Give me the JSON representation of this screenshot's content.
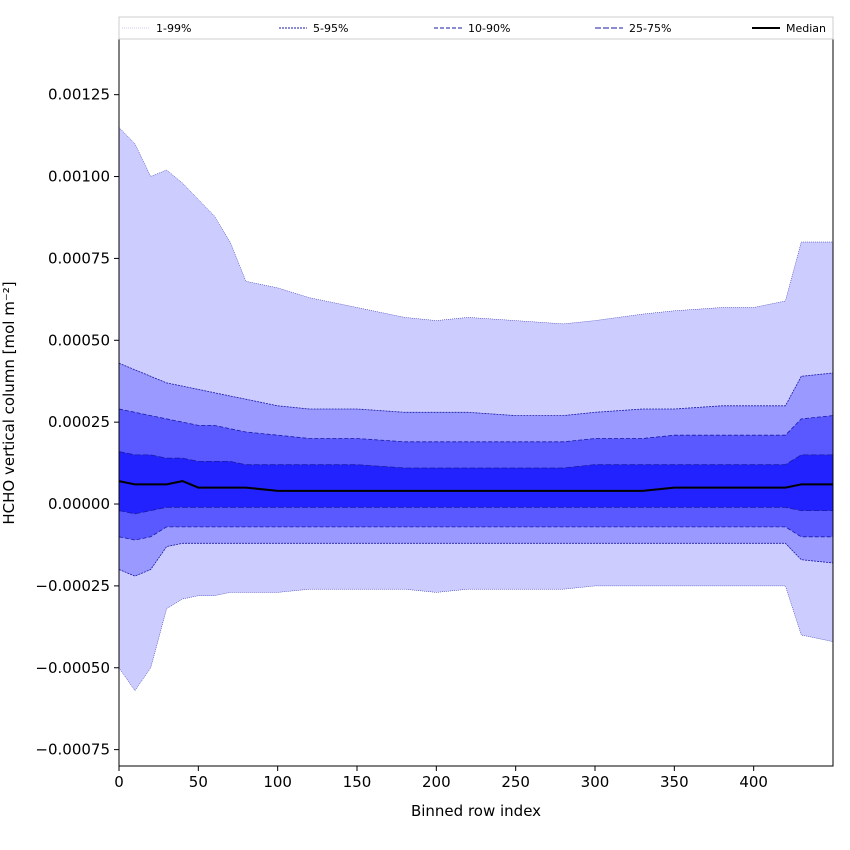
{
  "chart_data": {
    "type": "area",
    "title": "",
    "xlabel": "Binned row index",
    "ylabel": "HCHO vertical column [mol m⁻²]",
    "xlim": [
      0,
      450
    ],
    "ylim": [
      -0.0008,
      0.00142
    ],
    "xticks": [
      0,
      50,
      100,
      150,
      200,
      250,
      300,
      350,
      400
    ],
    "xtick_labels": [
      "0",
      "50",
      "100",
      "150",
      "200",
      "250",
      "300",
      "350",
      "400"
    ],
    "yticks": [
      -0.00075,
      -0.0005,
      -0.00025,
      0,
      0.00025,
      0.0005,
      0.00075,
      0.001,
      0.00125
    ],
    "ytick_labels": [
      "−0.00075",
      "−0.00050",
      "−0.00025",
      "0.00000",
      "0.00025",
      "0.00050",
      "0.00075",
      "0.00100",
      "0.00125"
    ],
    "grid": false,
    "legend_position": "top",
    "x": [
      0,
      10,
      20,
      30,
      40,
      50,
      60,
      70,
      80,
      100,
      120,
      150,
      180,
      200,
      220,
      250,
      280,
      300,
      330,
      350,
      380,
      400,
      420,
      430,
      450
    ],
    "series": [
      {
        "name": "1-99%",
        "upper": [
          0.00115,
          0.0011,
          0.001,
          0.00102,
          0.00098,
          0.00093,
          0.00088,
          0.0008,
          0.00068,
          0.00066,
          0.00063,
          0.0006,
          0.00057,
          0.00056,
          0.00057,
          0.00056,
          0.00055,
          0.00056,
          0.00058,
          0.00059,
          0.0006,
          0.0006,
          0.00062,
          0.0008,
          0.0008
        ],
        "lower": [
          -0.0005,
          -0.00057,
          -0.0005,
          -0.00032,
          -0.00029,
          -0.00028,
          -0.00028,
          -0.00027,
          -0.00027,
          -0.00027,
          -0.00026,
          -0.00026,
          -0.00026,
          -0.00027,
          -0.00026,
          -0.00026,
          -0.00026,
          -0.00025,
          -0.00025,
          -0.00025,
          -0.00025,
          -0.00025,
          -0.00025,
          -0.0004,
          -0.00042
        ],
        "color": "#ccccff"
      },
      {
        "name": "5-95%",
        "upper": [
          0.00043,
          0.00041,
          0.00039,
          0.00037,
          0.00036,
          0.00035,
          0.00034,
          0.00033,
          0.00032,
          0.0003,
          0.00029,
          0.00029,
          0.00028,
          0.00028,
          0.00028,
          0.00027,
          0.00027,
          0.00028,
          0.00029,
          0.00029,
          0.0003,
          0.0003,
          0.0003,
          0.00039,
          0.0004
        ],
        "lower": [
          -0.0002,
          -0.00022,
          -0.0002,
          -0.00013,
          -0.00012,
          -0.00012,
          -0.00012,
          -0.00012,
          -0.00012,
          -0.00012,
          -0.00012,
          -0.00012,
          -0.00012,
          -0.00012,
          -0.00012,
          -0.00012,
          -0.00012,
          -0.00012,
          -0.00012,
          -0.00012,
          -0.00012,
          -0.00012,
          -0.00012,
          -0.00017,
          -0.00018
        ],
        "color": "#9999ff"
      },
      {
        "name": "10-90%",
        "upper": [
          0.00029,
          0.00028,
          0.00027,
          0.00026,
          0.00025,
          0.00024,
          0.00024,
          0.00023,
          0.00022,
          0.00021,
          0.0002,
          0.0002,
          0.00019,
          0.00019,
          0.00019,
          0.00019,
          0.00019,
          0.0002,
          0.0002,
          0.00021,
          0.00021,
          0.00021,
          0.00021,
          0.00026,
          0.00027
        ],
        "lower": [
          -0.0001,
          -0.00011,
          -0.0001,
          -7e-05,
          -7e-05,
          -7e-05,
          -7e-05,
          -7e-05,
          -7e-05,
          -7e-05,
          -7e-05,
          -7e-05,
          -7e-05,
          -7e-05,
          -7e-05,
          -7e-05,
          -7e-05,
          -7e-05,
          -7e-05,
          -7e-05,
          -7e-05,
          -7e-05,
          -7e-05,
          -0.0001,
          -0.0001
        ],
        "color": "#5959ff"
      },
      {
        "name": "25-75%",
        "upper": [
          0.00016,
          0.00015,
          0.00015,
          0.00014,
          0.00014,
          0.00013,
          0.00013,
          0.00013,
          0.00012,
          0.00012,
          0.00012,
          0.00012,
          0.00011,
          0.00011,
          0.00011,
          0.00011,
          0.00011,
          0.00012,
          0.00012,
          0.00012,
          0.00012,
          0.00012,
          0.00012,
          0.00015,
          0.00015
        ],
        "lower": [
          -2e-05,
          -3e-05,
          -2e-05,
          -1e-05,
          -1e-05,
          -1e-05,
          -1e-05,
          -1e-05,
          -1e-05,
          -1e-05,
          -1e-05,
          -1e-05,
          -1e-05,
          -1e-05,
          -1e-05,
          -1e-05,
          -1e-05,
          -1e-05,
          -1e-05,
          -1e-05,
          -1e-05,
          -1e-05,
          -1e-05,
          -2e-05,
          -2e-05
        ],
        "color": "#2222ff"
      },
      {
        "name": "Median",
        "values": [
          7e-05,
          6e-05,
          6e-05,
          6e-05,
          7e-05,
          5e-05,
          5e-05,
          5e-05,
          5e-05,
          4e-05,
          4e-05,
          4e-05,
          4e-05,
          4e-05,
          4e-05,
          4e-05,
          4e-05,
          4e-05,
          4e-05,
          5e-05,
          5e-05,
          5e-05,
          5e-05,
          6e-05,
          6e-05
        ],
        "color": "#000000"
      }
    ]
  }
}
